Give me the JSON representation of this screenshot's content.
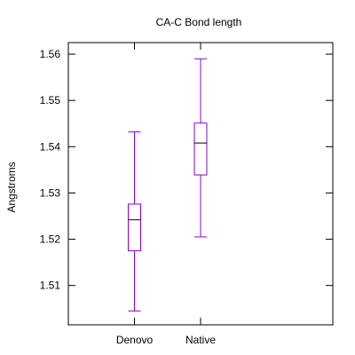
{
  "chart_data": {
    "type": "boxplot",
    "title": "CA-C Bond length",
    "xlabel": "",
    "ylabel": "Angstroms",
    "ylim": [
      1.5015,
      1.5625
    ],
    "yticks": [
      1.51,
      1.52,
      1.53,
      1.54,
      1.55,
      1.56
    ],
    "ytick_labels": [
      "1.51",
      "1.52",
      "1.53",
      "1.54",
      "1.55",
      "1.56"
    ],
    "categories": [
      "Denovo",
      "Native"
    ],
    "boxes": [
      {
        "category": "Denovo",
        "whisker_low": 1.5045,
        "q1": 1.5175,
        "median": 1.5242,
        "q3": 1.5276,
        "whisker_high": 1.5432
      },
      {
        "category": "Native",
        "whisker_low": 1.5205,
        "q1": 1.5339,
        "median": 1.5408,
        "q3": 1.5451,
        "whisker_high": 1.559
      }
    ],
    "box_color": "#8a00c8",
    "median_color": "#000000",
    "grid": false,
    "legend": "none"
  }
}
